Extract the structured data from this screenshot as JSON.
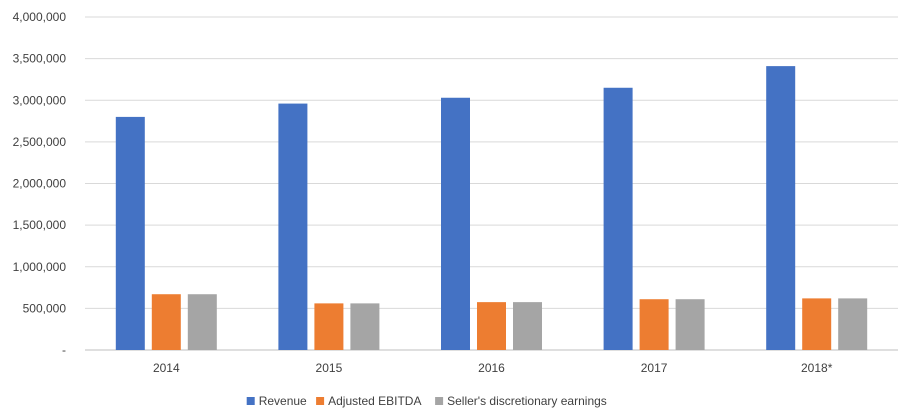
{
  "chart_data": {
    "type": "bar",
    "title": "",
    "xlabel": "",
    "ylabel": "",
    "categories": [
      "2014",
      "2015",
      "2016",
      "2017",
      "2018*"
    ],
    "series": [
      {
        "name": "Revenue",
        "color": "#4472C4",
        "values": [
          2800000,
          2960000,
          3030000,
          3150000,
          3410000
        ]
      },
      {
        "name": "Adjusted EBITDA",
        "color": "#ED7D31",
        "values": [
          670000,
          560000,
          575000,
          610000,
          620000
        ]
      },
      {
        "name": "Seller's discretionary earnings",
        "color": "#A5A5A5",
        "values": [
          670000,
          560000,
          575000,
          610000,
          620000
        ]
      }
    ],
    "ylim": [
      0,
      4000000
    ],
    "yticks": [
      0,
      500000,
      1000000,
      1500000,
      2000000,
      2500000,
      3000000,
      3500000,
      4000000
    ],
    "ytick_labels": [
      "-",
      "500,000",
      "1,000,000",
      "1,500,000",
      "2,000,000",
      "2,500,000",
      "3,000,000",
      "3,500,000",
      "4,000,000"
    ],
    "grid": true,
    "legend_position": "bottom"
  }
}
